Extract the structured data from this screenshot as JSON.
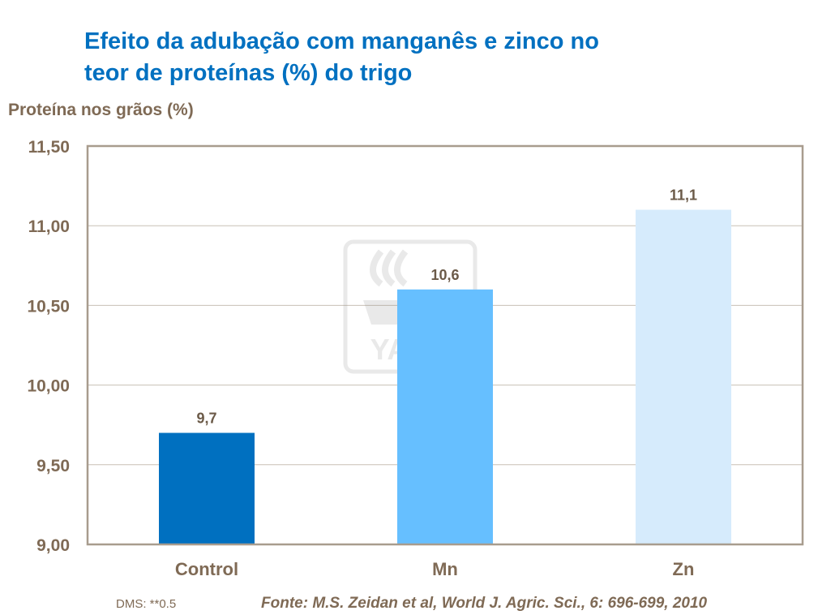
{
  "title_lines": [
    "Efeito da adubação com manganês e zinco no",
    "teor de proteínas (%) do trigo"
  ],
  "footer": {
    "dms": "DMS: **0.5",
    "source": "Fonte: M.S. Zeidan et al, World J. Agric. Sci., 6: 696-699, 2010"
  },
  "watermark": "YARA",
  "chart_data": {
    "type": "bar",
    "title": "Efeito da adubação com manganês e zinco no teor de proteínas (%) do trigo",
    "ylabel": "Proteína nos grãos (%)",
    "xlabel": "",
    "categories": [
      "Control",
      "Mn",
      "Zn"
    ],
    "values": [
      9.7,
      10.6,
      11.1
    ],
    "data_labels": [
      "9,7",
      "10,6",
      "11,1"
    ],
    "bar_colors": [
      "#0070c0",
      "#66bfff",
      "#d6ebfc"
    ],
    "ylim": [
      9.0,
      11.5
    ],
    "yticks": [
      9.0,
      9.5,
      10.0,
      10.5,
      11.0,
      11.5
    ],
    "ytick_labels": [
      "9,00",
      "9,50",
      "10,00",
      "10,50",
      "11,00",
      "11,50"
    ],
    "grid": true,
    "legend": "none"
  }
}
